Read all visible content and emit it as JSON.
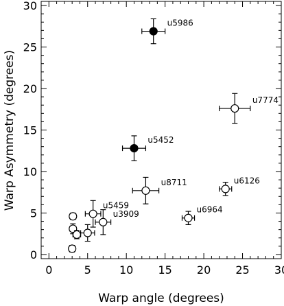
{
  "chart_data": {
    "type": "scatter",
    "title": "",
    "xlabel": "Warp angle (degrees)",
    "ylabel": "Warp Asymmetry (degrees)",
    "xlim": [
      -1,
      30
    ],
    "ylim": [
      -0.5,
      30.5
    ],
    "x_ticks": [
      0,
      5,
      10,
      15,
      20,
      25,
      30
    ],
    "y_ticks": [
      0,
      5,
      10,
      15,
      20,
      25,
      30
    ],
    "grid": false,
    "legend": "none",
    "marker_color": "#000000",
    "points": [
      {
        "name": "u5986",
        "x": 13.5,
        "y": 26.9,
        "xerr": 1.5,
        "yerr": 1.5,
        "filled": true
      },
      {
        "name": "u7774",
        "x": 24.0,
        "y": 17.6,
        "xerr": 2.0,
        "yerr": 1.8,
        "filled": false
      },
      {
        "name": "u5452",
        "x": 11.0,
        "y": 12.8,
        "xerr": 1.5,
        "yerr": 1.5,
        "filled": true
      },
      {
        "name": "u8711",
        "x": 12.5,
        "y": 7.7,
        "xerr": 1.7,
        "yerr": 1.6,
        "filled": false
      },
      {
        "name": "u6126",
        "x": 22.8,
        "y": 7.9,
        "xerr": 0.8,
        "yerr": 0.8,
        "filled": false
      },
      {
        "name": "u6964",
        "x": 18.0,
        "y": 4.4,
        "xerr": 0.8,
        "yerr": 0.8,
        "filled": false
      },
      {
        "name": "u5459",
        "x": 5.7,
        "y": 4.9,
        "xerr": 1.0,
        "yerr": 1.6,
        "filled": false
      },
      {
        "name": "u3909",
        "x": 7.0,
        "y": 3.9,
        "xerr": 1.0,
        "yerr": 1.5,
        "filled": false
      },
      {
        "name": "",
        "x": 3.1,
        "y": 4.6,
        "xerr": 0.4,
        "yerr": 0.4,
        "filled": false
      },
      {
        "name": "",
        "x": 3.1,
        "y": 3.1,
        "xerr": 0.4,
        "yerr": 0.6,
        "filled": false
      },
      {
        "name": "",
        "x": 3.6,
        "y": 2.4,
        "xerr": 0.5,
        "yerr": 0.5,
        "filled": false
      },
      {
        "name": "",
        "x": 5.0,
        "y": 2.6,
        "xerr": 0.9,
        "yerr": 1.0,
        "filled": false
      },
      {
        "name": "",
        "x": 3.0,
        "y": 0.7,
        "xerr": 0.4,
        "yerr": 0.4,
        "filled": false
      }
    ]
  }
}
